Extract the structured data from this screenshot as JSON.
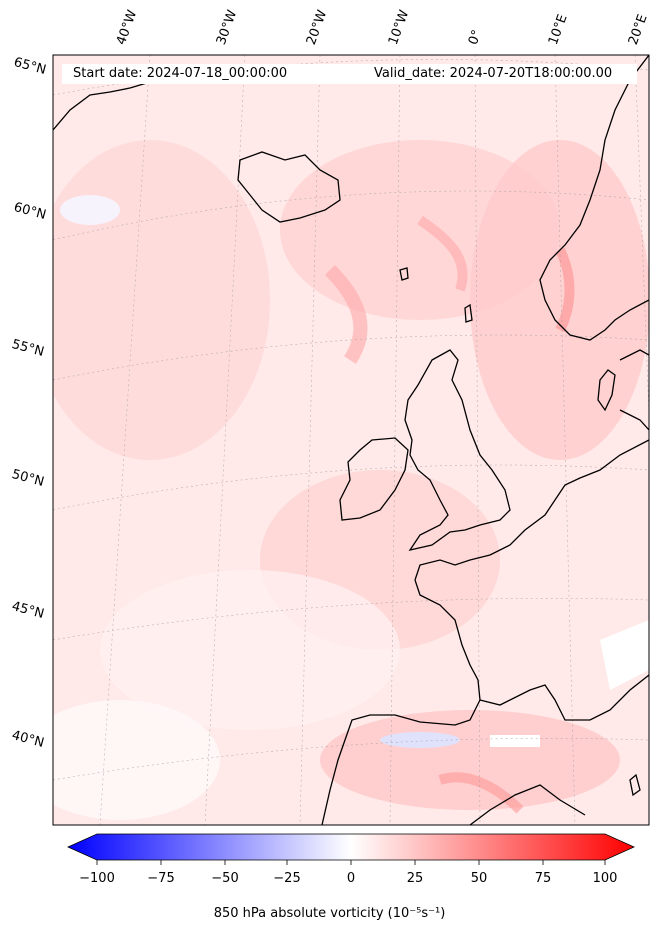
{
  "map": {
    "start_label": "Start date: 2024-07-18_00:00:00",
    "valid_label": "Valid_date: 2024-07-20T18:00:00.00",
    "lat_labels": [
      "65°N",
      "60°N",
      "55°N",
      "50°N",
      "45°N",
      "40°N"
    ],
    "lon_labels": [
      "40°W",
      "30°W",
      "20°W",
      "10°W",
      "0°",
      "10°E",
      "20°E"
    ],
    "field_color_low": "#ffe9e9",
    "field_color_mid": "#ffc9c9",
    "field_color_high": "#ff8f8f",
    "coastline_color": "#000000"
  },
  "colorbar": {
    "title": "850 hPa absolute vorticity (10⁻⁵s⁻¹)",
    "tick_labels": [
      "−100",
      "−75",
      "−50",
      "−25",
      "0",
      "25",
      "50",
      "75",
      "100"
    ],
    "min": -100,
    "max": 100,
    "color_min": "#0000ff",
    "color_mid": "#ffffff",
    "color_max": "#ff0000"
  }
}
